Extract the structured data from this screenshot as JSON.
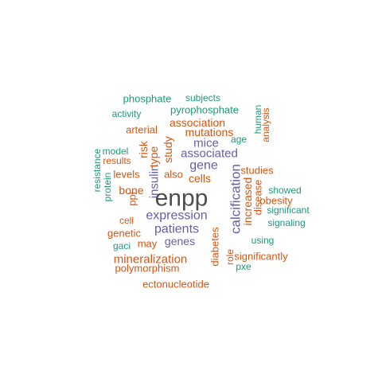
{
  "colors": {
    "gray": "#4d4d4d",
    "purple": "#6a5bab",
    "orange": "#d9540f",
    "green": "#1c9b78"
  },
  "words": [
    {
      "text": "enpp",
      "color": "gray"
    },
    {
      "text": "calcification",
      "color": "purple"
    },
    {
      "text": "expression",
      "color": "purple"
    },
    {
      "text": "patients",
      "color": "purple"
    },
    {
      "text": "gene",
      "color": "purple"
    },
    {
      "text": "associated",
      "color": "purple"
    },
    {
      "text": "genes",
      "color": "purple"
    },
    {
      "text": "mice",
      "color": "purple"
    },
    {
      "text": "insulin",
      "color": "purple"
    },
    {
      "text": "mineralization",
      "color": "orange"
    },
    {
      "text": "cells",
      "color": "orange"
    },
    {
      "text": "bone",
      "color": "orange"
    },
    {
      "text": "increased",
      "color": "orange"
    },
    {
      "text": "study",
      "color": "orange"
    },
    {
      "text": "type",
      "color": "orange"
    },
    {
      "text": "risk",
      "color": "orange"
    },
    {
      "text": "association",
      "color": "orange"
    },
    {
      "text": "mutations",
      "color": "orange"
    },
    {
      "text": "diabetes",
      "color": "orange"
    },
    {
      "text": "disease",
      "color": "orange"
    },
    {
      "text": "levels",
      "color": "orange"
    },
    {
      "text": "also",
      "color": "orange"
    },
    {
      "text": "ppi",
      "color": "orange"
    },
    {
      "text": "genetic",
      "color": "orange"
    },
    {
      "text": "may",
      "color": "orange"
    },
    {
      "text": "cell",
      "color": "orange"
    },
    {
      "text": "polymorphism",
      "color": "orange"
    },
    {
      "text": "ectonucleotide",
      "color": "orange"
    },
    {
      "text": "arterial",
      "color": "orange"
    },
    {
      "text": "results",
      "color": "orange"
    },
    {
      "text": "studies",
      "color": "orange"
    },
    {
      "text": "obesity",
      "color": "orange"
    },
    {
      "text": "role",
      "color": "orange"
    },
    {
      "text": "significantly",
      "color": "orange"
    },
    {
      "text": "analysis",
      "color": "orange"
    },
    {
      "text": "phosphate",
      "color": "green"
    },
    {
      "text": "subjects",
      "color": "green"
    },
    {
      "text": "pyrophosphate",
      "color": "green"
    },
    {
      "text": "activity",
      "color": "green"
    },
    {
      "text": "human",
      "color": "green"
    },
    {
      "text": "age",
      "color": "green"
    },
    {
      "text": "model",
      "color": "green"
    },
    {
      "text": "resistance",
      "color": "green"
    },
    {
      "text": "protein",
      "color": "green"
    },
    {
      "text": "showed",
      "color": "green"
    },
    {
      "text": "significant",
      "color": "green"
    },
    {
      "text": "signaling",
      "color": "green"
    },
    {
      "text": "using",
      "color": "green"
    },
    {
      "text": "pxe",
      "color": "green"
    },
    {
      "text": "gaci",
      "color": "green"
    }
  ]
}
